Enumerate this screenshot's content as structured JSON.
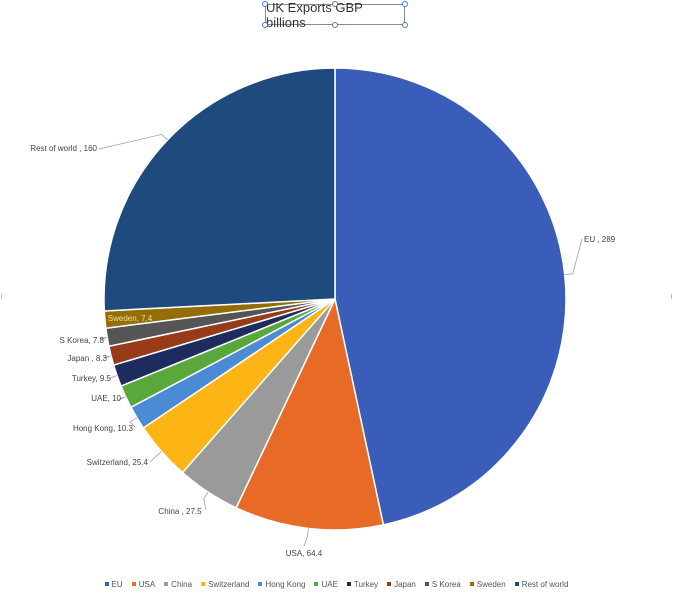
{
  "chart_data": {
    "type": "pie",
    "title": "UK Exports GBP billions",
    "legend_position": "bottom",
    "categories": [
      "EU",
      "USA",
      "China",
      "Switzerland",
      "Hong Kong",
      "UAE",
      "Turkey",
      "Japan",
      "S Korea",
      "Sweden",
      "Rest of world"
    ],
    "values": [
      289,
      64.4,
      27.5,
      25.4,
      10.3,
      10,
      9.5,
      8.3,
      7.8,
      7.4,
      160
    ],
    "data_labels": [
      "EU , 289",
      "USA, 64.4",
      "China , 27.5",
      "Switzerland, 25.4",
      "Hong Kong, 10.3",
      "UAE, 10",
      "Turkey, 9.5",
      "Japan , 8.3",
      "S Korea, 7.8",
      "Sweden, 7.4",
      "Rest of world , 160"
    ],
    "colors": [
      "#3a5dba",
      "#e86a27",
      "#9a9a9a",
      "#fdb515",
      "#4a8bd3",
      "#5aa83c",
      "#1e2b5e",
      "#973b1a",
      "#555555",
      "#946d05",
      "#1f4a7e"
    ]
  }
}
